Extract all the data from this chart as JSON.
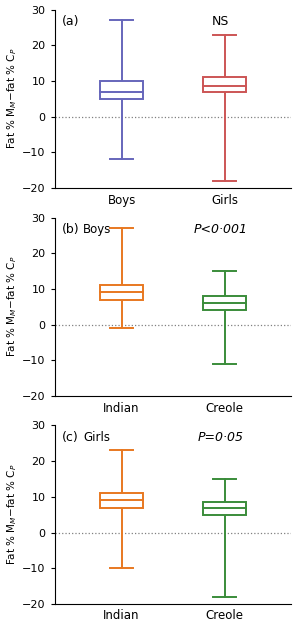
{
  "panels": [
    {
      "label": "(a)",
      "title": "NS",
      "title_style": "normal",
      "subtitle": null,
      "ylabel": "Fat % M$_{M}$−fat % C$_{P}$",
      "groups": [
        "Boys",
        "Girls"
      ],
      "colors": [
        "#6666bb",
        "#cc5555"
      ],
      "boxes": [
        {
          "q1": 5.0,
          "median": 7.0,
          "q3": 10.0,
          "whisker_low": -12.0,
          "whisker_high": 27.0
        },
        {
          "q1": 7.0,
          "median": 8.5,
          "q3": 11.0,
          "whisker_low": -18.0,
          "whisker_high": 23.0
        }
      ]
    },
    {
      "label": "(b)",
      "title": "P<0·001",
      "title_style": "italic",
      "subtitle": "Boys",
      "ylabel": "Fat % M$_{M}$−fat % C$_{P}$",
      "groups": [
        "Indian",
        "Creole"
      ],
      "colors": [
        "#e87820",
        "#3a8c3a"
      ],
      "boxes": [
        {
          "q1": 7.0,
          "median": 9.0,
          "q3": 11.0,
          "whisker_low": -1.0,
          "whisker_high": 27.0
        },
        {
          "q1": 4.0,
          "median": 6.0,
          "q3": 8.0,
          "whisker_low": -11.0,
          "whisker_high": 15.0
        }
      ]
    },
    {
      "label": "(c)",
      "title": "P=0·05",
      "title_style": "italic",
      "subtitle": "Girls",
      "ylabel": "Fat % M$_{M}$−fat % C$_{P}$",
      "groups": [
        "Indian",
        "Creole"
      ],
      "colors": [
        "#e87820",
        "#3a8c3a"
      ],
      "boxes": [
        {
          "q1": 7.0,
          "median": 9.0,
          "q3": 11.0,
          "whisker_low": -10.0,
          "whisker_high": 23.0
        },
        {
          "q1": 5.0,
          "median": 7.0,
          "q3": 8.5,
          "whisker_low": -18.0,
          "whisker_high": 15.0
        }
      ]
    }
  ],
  "ylim": [
    -20,
    30
  ],
  "yticks": [
    -20,
    -10,
    0,
    10,
    20,
    30
  ],
  "box_width": 0.42,
  "linewidth": 1.4,
  "cap_ratio": 0.55,
  "background_color": "#ffffff"
}
